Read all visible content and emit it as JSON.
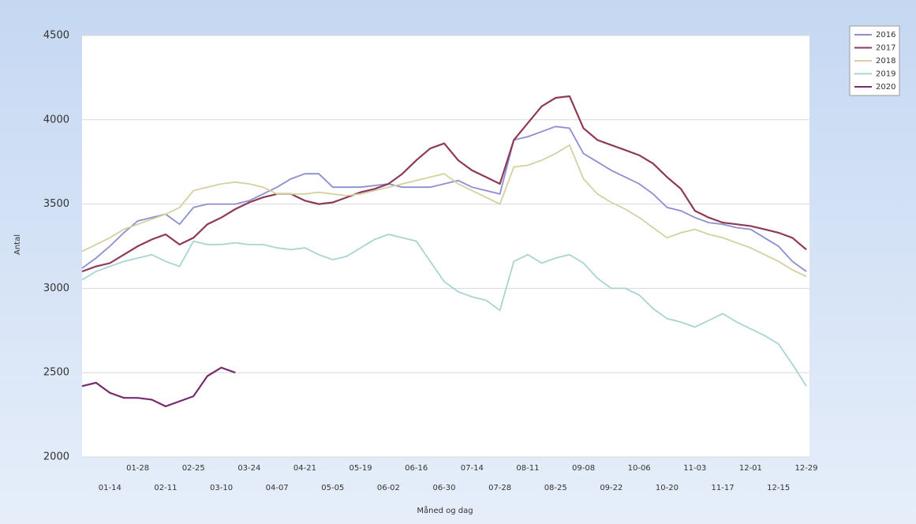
{
  "chart_data": {
    "type": "line",
    "x_label": "Måned og dag",
    "y_label": "Antal",
    "categories": [
      null,
      null,
      "01-14",
      null,
      "01-28",
      null,
      "02-11",
      null,
      "02-25",
      null,
      "03-10",
      null,
      "03-24",
      null,
      "04-07",
      null,
      "04-21",
      null,
      "05-05",
      null,
      "05-19",
      null,
      "06-02",
      null,
      "06-16",
      null,
      "06-30",
      null,
      "07-14",
      null,
      "07-28",
      null,
      "08-11",
      null,
      "08-25",
      null,
      "09-08",
      null,
      "09-22",
      null,
      "10-06",
      null,
      "10-20",
      null,
      "11-03",
      null,
      "11-17",
      null,
      "12-01",
      null,
      "12-15",
      null,
      "12-29"
    ],
    "ylim": [
      2000,
      4500
    ],
    "yticks": [
      2000,
      2500,
      3000,
      3500,
      4000,
      4500
    ],
    "grid": true,
    "legend": "right",
    "series": [
      {
        "name": "2016",
        "color": "#8c8ed0",
        "values": [
          3120,
          3180,
          3250,
          3330,
          3400,
          3420,
          3440,
          3380,
          3480,
          3500,
          3500,
          3500,
          3520,
          3560,
          3600,
          3650,
          3680,
          3680,
          3600,
          3600,
          3600,
          3610,
          3620,
          3600,
          3600,
          3600,
          3620,
          3640,
          3600,
          3580,
          3560,
          3880,
          3900,
          3930,
          3960,
          3950,
          3800,
          3750,
          3700,
          3660,
          3620,
          3560,
          3480,
          3460,
          3420,
          3390,
          3380,
          3360,
          3350,
          3300,
          3250,
          3160,
          3100
        ]
      },
      {
        "name": "2017",
        "color": "#8e3a56",
        "values": [
          3100,
          3130,
          3150,
          3200,
          3250,
          3290,
          3320,
          3260,
          3300,
          3380,
          3420,
          3470,
          3510,
          3540,
          3560,
          3560,
          3520,
          3500,
          3510,
          3540,
          3570,
          3590,
          3620,
          3680,
          3760,
          3830,
          3860,
          3760,
          3700,
          3660,
          3620,
          3880,
          3980,
          4080,
          4130,
          4140,
          3950,
          3880,
          3850,
          3820,
          3790,
          3740,
          3660,
          3590,
          3460,
          3420,
          3390,
          3380,
          3370,
          3350,
          3330,
          3300,
          3230
        ]
      },
      {
        "name": "2018",
        "color": "#d4d0a0",
        "values": [
          3220,
          3260,
          3300,
          3350,
          3380,
          3410,
          3440,
          3480,
          3580,
          3600,
          3620,
          3630,
          3620,
          3600,
          3560,
          3560,
          3560,
          3570,
          3560,
          3550,
          3560,
          3580,
          3600,
          3620,
          3640,
          3660,
          3680,
          3620,
          3580,
          3540,
          3500,
          3720,
          3730,
          3760,
          3800,
          3850,
          3650,
          3560,
          3510,
          3470,
          3420,
          3360,
          3300,
          3330,
          3350,
          3320,
          3300,
          3270,
          3240,
          3200,
          3160,
          3110,
          3070
        ]
      },
      {
        "name": "2019",
        "color": "#a8d4d2",
        "values": [
          3050,
          3100,
          3130,
          3160,
          3180,
          3200,
          3160,
          3130,
          3280,
          3260,
          3260,
          3270,
          3260,
          3260,
          3240,
          3230,
          3240,
          3200,
          3170,
          3190,
          3240,
          3290,
          3320,
          3300,
          3280,
          3160,
          3040,
          2980,
          2950,
          2930,
          2870,
          3160,
          3200,
          3150,
          3180,
          3200,
          3150,
          3060,
          3000,
          3000,
          2960,
          2880,
          2820,
          2800,
          2770,
          2810,
          2850,
          2800,
          2760,
          2720,
          2670,
          2550,
          2420
        ]
      },
      {
        "name": "2020",
        "color": "#7a2a6e",
        "values": [
          2420,
          2440,
          2380,
          2350,
          2350,
          2340,
          2300,
          2330,
          2360,
          2480,
          2530,
          2500,
          null,
          null,
          null,
          null,
          null,
          null,
          null,
          null,
          null,
          null,
          null,
          null,
          null,
          null,
          null,
          null,
          null,
          null,
          null,
          null,
          null,
          null,
          null,
          null,
          null,
          null,
          null,
          null,
          null,
          null,
          null,
          null,
          null,
          null,
          null,
          null,
          null,
          null,
          null,
          null,
          null
        ]
      }
    ]
  }
}
